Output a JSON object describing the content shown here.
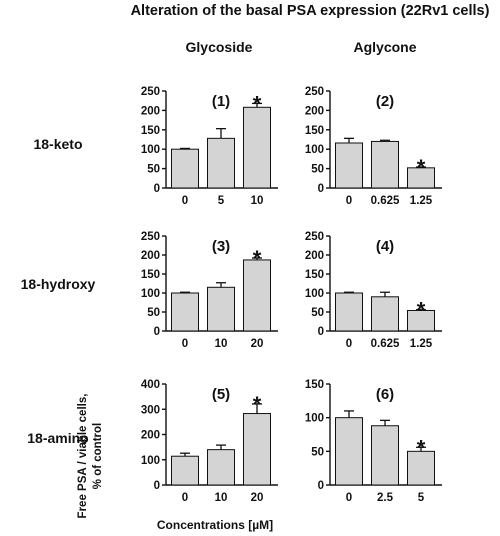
{
  "figure": {
    "title": "Alteration of the basal PSA expression (22Rv1 cells)",
    "columns": [
      "Glycoside",
      "Aglycone"
    ],
    "rows": [
      "18-keto",
      "18-hydroxy",
      "18-amino"
    ],
    "ylabel_lines": [
      "Free PSA / viable cells,",
      "% of control"
    ],
    "xlabel": "Concentrations [µM]"
  },
  "colors": {
    "bar_fill": "#d4d4d4",
    "stroke": "#111111"
  },
  "chart_data": [
    {
      "type": "bar",
      "label": "(1)",
      "row": 0,
      "col": 0,
      "categories": [
        "0",
        "5",
        "10"
      ],
      "values": [
        100,
        128,
        208
      ],
      "errors": [
        2,
        25,
        10
      ],
      "significant": [
        false,
        false,
        true
      ],
      "ylim": [
        0,
        250
      ],
      "yticks": [
        0,
        50,
        100,
        150,
        200,
        250
      ]
    },
    {
      "type": "bar",
      "label": "(2)",
      "row": 0,
      "col": 1,
      "categories": [
        "0",
        "0.625",
        "1.25"
      ],
      "values": [
        116,
        120,
        52
      ],
      "errors": [
        12,
        3,
        2
      ],
      "significant": [
        false,
        false,
        true
      ],
      "ylim": [
        0,
        250
      ],
      "yticks": [
        0,
        50,
        100,
        150,
        200,
        250
      ]
    },
    {
      "type": "bar",
      "label": "(3)",
      "row": 1,
      "col": 0,
      "categories": [
        "0",
        "10",
        "20"
      ],
      "values": [
        100,
        115,
        187
      ],
      "errors": [
        2,
        12,
        5
      ],
      "significant": [
        false,
        false,
        true
      ],
      "ylim": [
        0,
        250
      ],
      "yticks": [
        0,
        50,
        100,
        150,
        200,
        250
      ]
    },
    {
      "type": "bar",
      "label": "(4)",
      "row": 1,
      "col": 1,
      "categories": [
        "0",
        "0.625",
        "1.25"
      ],
      "values": [
        100,
        90,
        54
      ],
      "errors": [
        2,
        12,
        2
      ],
      "significant": [
        false,
        false,
        true
      ],
      "ylim": [
        0,
        250
      ],
      "yticks": [
        0,
        50,
        100,
        150,
        200,
        250
      ]
    },
    {
      "type": "bar",
      "label": "(5)",
      "row": 2,
      "col": 0,
      "categories": [
        "0",
        "10",
        "20"
      ],
      "values": [
        114,
        140,
        283
      ],
      "errors": [
        12,
        18,
        38
      ],
      "significant": [
        false,
        false,
        true
      ],
      "ylim": [
        0,
        400
      ],
      "yticks": [
        0,
        100,
        200,
        300,
        400
      ]
    },
    {
      "type": "bar",
      "label": "(6)",
      "row": 2,
      "col": 1,
      "categories": [
        "0",
        "2.5",
        "5"
      ],
      "values": [
        100,
        88,
        50
      ],
      "errors": [
        10,
        8,
        6
      ],
      "significant": [
        false,
        false,
        true
      ],
      "ylim": [
        0,
        150
      ],
      "yticks": [
        0,
        50,
        100,
        150
      ]
    }
  ]
}
